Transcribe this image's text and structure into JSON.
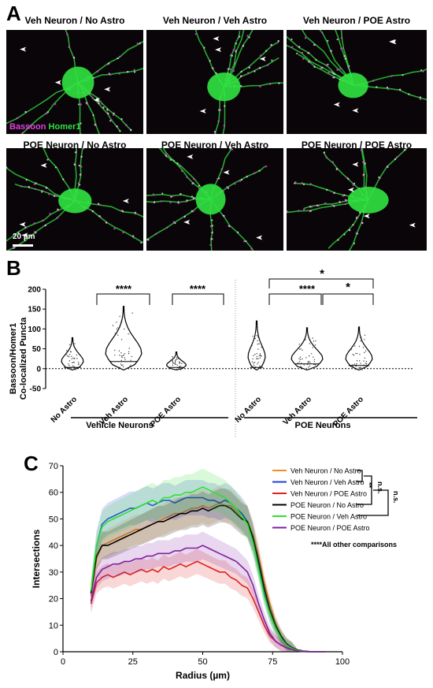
{
  "panel_a": {
    "letter": "A",
    "titles": [
      "Veh Neuron / No Astro",
      "Veh Neuron / Veh Astro",
      "Veh Neuron / POE Astro",
      "POE Neuron / No Astro",
      "POE Neuron / Veh Astro",
      "POE Neuron / POE Astro"
    ],
    "legend_bassoon": "Bassoon",
    "legend_homer": "Homer1",
    "scale_bar": "20 µm",
    "colors": {
      "bassoon": "#e040e0",
      "homer": "#30e040",
      "background": "#0a0508"
    }
  },
  "panel_b": {
    "letter": "B",
    "ylabel_line1": "Bassoon/Homer1",
    "ylabel_line2": "Co-localized Puncta",
    "group_vehicle": "Vehicle Neurons",
    "group_poe": "POE Neurons",
    "sig_veh_1": "****",
    "sig_veh_2": "****",
    "sig_poe_top": "*",
    "sig_poe_1": "****",
    "sig_poe_2": "*"
  },
  "panel_c": {
    "letter": "C",
    "comparisons_note": "****All other comparisons",
    "sig_pair": "**",
    "ns_1": "n.s.",
    "ns_2": "n.s."
  },
  "chart_data": [
    {
      "type": "violin",
      "ylim": [
        -50,
        200
      ],
      "yticks": [
        -50,
        0,
        50,
        100,
        150,
        200
      ],
      "ylabel": "Bassoon/Homer1 Co-localized Puncta",
      "categories": [
        "No Astro",
        "Veh Astro",
        "POE Astro",
        "No Astro",
        "Veh Astro",
        "POE Astro"
      ],
      "groups": [
        "Vehicle Neurons",
        "Vehicle Neurons",
        "Vehicle Neurons",
        "POE Neurons",
        "POE Neurons",
        "POE Neurons"
      ],
      "max_values": [
        78,
        157,
        42,
        120,
        103,
        105
      ],
      "median_values": [
        3,
        18,
        3,
        3,
        12,
        8
      ],
      "reference_line": 0
    },
    {
      "type": "line",
      "xlabel": "Radius (µm)",
      "ylabel": "Intersections",
      "xlim": [
        0,
        100
      ],
      "ylim": [
        0,
        70
      ],
      "xticks": [
        0,
        25,
        50,
        75,
        100
      ],
      "yticks": [
        0,
        10,
        20,
        30,
        40,
        50,
        60,
        70
      ],
      "x": [
        10,
        12,
        14,
        16,
        18,
        20,
        22,
        24,
        26,
        28,
        30,
        32,
        34,
        36,
        38,
        40,
        42,
        44,
        46,
        48,
        50,
        52,
        54,
        56,
        58,
        60,
        62,
        64,
        66,
        68,
        70,
        72,
        74,
        76,
        78,
        80,
        82,
        84,
        86,
        88,
        90,
        92,
        94
      ],
      "series": [
        {
          "name": "Veh Neuron / No Astro",
          "color": "#f28c28",
          "values": [
            21,
            35,
            40,
            41,
            42,
            43,
            44,
            45,
            46,
            46,
            47,
            48,
            49,
            50,
            51,
            52,
            52,
            53,
            54,
            54,
            55,
            54,
            55,
            56,
            55,
            55,
            53,
            51,
            49,
            44,
            36,
            26,
            18,
            11,
            6,
            3,
            1.5,
            0.7,
            0.3,
            0.1,
            0,
            0,
            0
          ]
        },
        {
          "name": "Veh Neuron / Veh Astro",
          "color": "#2040e0",
          "values": [
            22,
            40,
            48,
            50,
            51,
            52,
            53,
            54,
            54,
            55,
            56,
            55,
            56,
            57,
            57,
            56,
            57,
            58,
            58,
            58,
            58,
            57,
            57,
            56,
            57,
            56,
            54,
            52,
            49,
            42,
            32,
            22,
            14,
            9,
            5,
            2.5,
            1.2,
            0.5,
            0.2,
            0,
            0,
            0,
            0
          ]
        },
        {
          "name": "Veh Neuron / POE Astro",
          "color": "#e02020",
          "values": [
            18,
            26,
            28,
            29,
            28,
            29,
            30,
            29,
            30,
            31,
            30,
            31,
            30,
            32,
            31,
            32,
            33,
            32,
            33,
            34,
            33,
            32,
            31,
            30,
            30,
            28,
            27,
            25,
            24,
            20,
            15,
            10,
            6,
            4,
            2.5,
            1.5,
            0.8,
            0.3,
            0.1,
            0,
            0,
            0,
            0
          ]
        },
        {
          "name": "POE Neuron / No Astro",
          "color": "#000000",
          "values": [
            22,
            36,
            40,
            40,
            41,
            42,
            43,
            44,
            45,
            46,
            47,
            48,
            49,
            49,
            50,
            51,
            52,
            52,
            53,
            53,
            54,
            53,
            54,
            55,
            55,
            54,
            52,
            50,
            49,
            43,
            34,
            24,
            16,
            10,
            6,
            3,
            1.5,
            0.7,
            0.3,
            0.1,
            0,
            0,
            0
          ]
        },
        {
          "name": "POE Neuron / Veh Astro",
          "color": "#30e030",
          "values": [
            23,
            40,
            47,
            49,
            50,
            51,
            52,
            53,
            54,
            55,
            56,
            57,
            56,
            58,
            58,
            59,
            59,
            60,
            60,
            61,
            62,
            61,
            60,
            59,
            58,
            56,
            54,
            51,
            48,
            41,
            31,
            21,
            14,
            9,
            5,
            2.5,
            1.2,
            0.5,
            0.2,
            0,
            0,
            0,
            0
          ]
        },
        {
          "name": "POE Neuron / POE Astro",
          "color": "#8020a0",
          "values": [
            19,
            28,
            31,
            32,
            33,
            33,
            34,
            34,
            35,
            35,
            36,
            36,
            37,
            37,
            37,
            38,
            38,
            39,
            39,
            39,
            40,
            39,
            38,
            37,
            36,
            35,
            34,
            32,
            30,
            25,
            18,
            12,
            7,
            4,
            2.5,
            1.5,
            0.8,
            0.3,
            0.1,
            0,
            0,
            0,
            0
          ]
        }
      ]
    }
  ]
}
